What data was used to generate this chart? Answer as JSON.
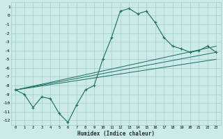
{
  "xlabel": "Humidex (Indice chaleur)",
  "bg_color": "#cceae7",
  "grid_color": "#9eccc8",
  "line_color": "#1a6b60",
  "xlim": [
    -0.5,
    23.5
  ],
  "ylim": [
    -12.5,
    1.5
  ],
  "xticks": [
    0,
    1,
    2,
    3,
    4,
    5,
    6,
    7,
    8,
    9,
    10,
    11,
    12,
    13,
    14,
    15,
    16,
    17,
    18,
    19,
    20,
    21,
    22,
    23
  ],
  "yticks": [
    1,
    0,
    -1,
    -2,
    -3,
    -4,
    -5,
    -6,
    -7,
    -8,
    -9,
    -10,
    -11,
    -12
  ],
  "main_x": [
    0,
    1,
    2,
    3,
    4,
    5,
    6,
    7,
    8,
    9,
    10,
    11,
    12,
    13,
    14,
    15,
    16,
    17,
    18,
    19,
    20,
    21,
    22,
    23
  ],
  "main_y": [
    -8.5,
    -9.0,
    -10.5,
    -9.3,
    -9.5,
    -11.2,
    -12.2,
    -10.2,
    -8.5,
    -8.0,
    -5.0,
    -2.5,
    0.5,
    0.8,
    0.2,
    0.5,
    -0.8,
    -2.5,
    -3.5,
    -3.8,
    -4.2,
    -4.0,
    -3.5,
    -4.2
  ],
  "line2_x": [
    0,
    23
  ],
  "line2_y": [
    -8.5,
    -5.0
  ],
  "line3_x": [
    0,
    23
  ],
  "line3_y": [
    -8.5,
    -4.2
  ],
  "line4_x": [
    0,
    23
  ],
  "line4_y": [
    -8.5,
    -3.5
  ]
}
